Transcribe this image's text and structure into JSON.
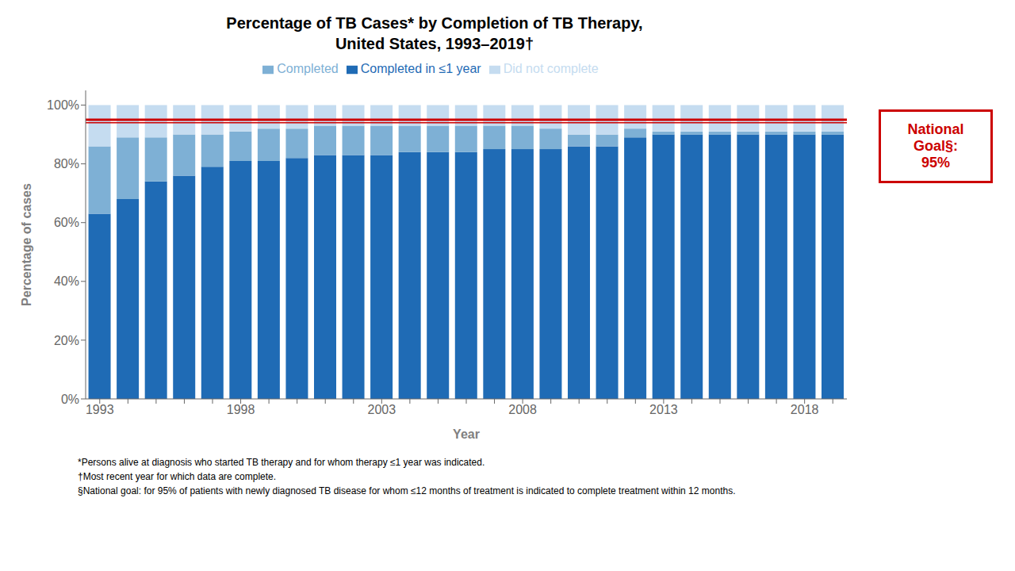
{
  "chart_data": {
    "type": "bar",
    "title": "Percentage of TB Cases* by Completion of TB Therapy,\nUnited States, 1993–2019†",
    "x_label": "Year",
    "y_label": "Percentage of cases",
    "categories": [
      "1993",
      null,
      null,
      null,
      null,
      "1998",
      null,
      null,
      null,
      null,
      "2003",
      null,
      null,
      null,
      null,
      "2008",
      null,
      null,
      null,
      null,
      "2013",
      null,
      null,
      null,
      null,
      "2018",
      null
    ],
    "series": [
      {
        "name": "Completed in ≤1 year",
        "color": "#1F6BB5",
        "values": [
          63,
          68,
          74,
          76,
          79,
          81,
          81,
          82,
          83,
          83,
          83,
          84,
          84,
          84,
          85,
          85,
          85,
          86,
          86,
          89,
          90,
          90,
          90,
          90,
          90,
          90,
          90
        ]
      },
      {
        "name": "Completed",
        "color": "#7EB0D5",
        "values": [
          23,
          21,
          15,
          14,
          11,
          10,
          11,
          10,
          10,
          10,
          10,
          9,
          9,
          9,
          8,
          8,
          7,
          4,
          4,
          3,
          1,
          1,
          1,
          1,
          1,
          1,
          1
        ]
      },
      {
        "name": "Did not complete",
        "color": "#C5DCF0",
        "values": [
          14,
          11,
          11,
          10,
          10,
          9,
          8,
          8,
          7,
          7,
          7,
          7,
          7,
          7,
          7,
          7,
          8,
          10,
          10,
          8,
          9,
          9,
          9,
          9,
          9,
          9,
          9
        ]
      }
    ],
    "stacked": true,
    "ylim": [
      0,
      105
    ],
    "yticks": [
      {
        "value": 0,
        "label": "0%"
      },
      {
        "value": 20,
        "label": "20%"
      },
      {
        "value": 40,
        "label": "40%"
      },
      {
        "value": 60,
        "label": "60%"
      },
      {
        "value": 80,
        "label": "80%"
      },
      {
        "value": 100,
        "label": "100%"
      }
    ],
    "grid": false,
    "legend": "top",
    "reference_lines": [
      {
        "value": 95,
        "color": "#CC0000"
      },
      {
        "value": 94,
        "color": "#CC0000"
      }
    ],
    "annotations": [
      {
        "text": "National\nGoal§:\n95%",
        "color": "#CC0000"
      }
    ],
    "footnotes": [
      "*Persons alive at diagnosis who started TB therapy and for whom therapy ≤1 year was indicated.",
      "†Most recent year for which data are complete.",
      "§National goal: for 95% of patients with newly diagnosed TB disease for whom ≤12 months of treatment is indicated to complete treatment within 12 months."
    ]
  }
}
